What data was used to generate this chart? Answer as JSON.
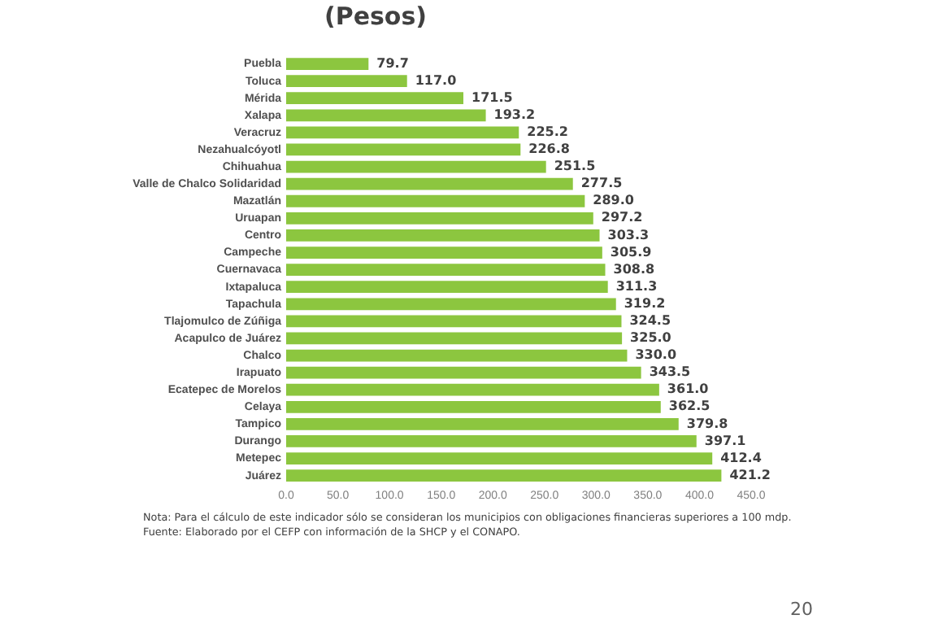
{
  "chart_data": {
    "type": "bar",
    "orientation": "horizontal",
    "title": "(Pesos)",
    "categories": [
      "Puebla",
      "Toluca",
      "Mérida",
      "Xalapa",
      "Veracruz",
      "Nezahualcóyotl",
      "Chihuahua",
      "Valle de Chalco Solidaridad",
      "Mazatlán",
      "Uruapan",
      "Centro",
      "Campeche",
      "Cuernavaca",
      "Ixtapaluca",
      "Tapachula",
      "Tlajomulco de Zúñiga",
      "Acapulco de Juárez",
      "Chalco",
      "Irapuato",
      "Ecatepec de Morelos",
      "Celaya",
      "Tampico",
      "Durango",
      "Metepec",
      "Juárez"
    ],
    "values": [
      79.7,
      117.0,
      171.5,
      193.2,
      225.2,
      226.8,
      251.5,
      277.5,
      289.0,
      297.2,
      303.3,
      305.9,
      308.8,
      311.3,
      319.2,
      324.5,
      325.0,
      330.0,
      343.5,
      361.0,
      362.5,
      379.8,
      397.1,
      412.4,
      421.2
    ],
    "value_labels": [
      "79.7",
      "117.0",
      "171.5",
      "193.2",
      "225.2",
      "226.8",
      "251.5",
      "277.5",
      "289.0",
      "297.2",
      "303.3",
      "305.9",
      "308.8",
      "311.3",
      "319.2",
      "324.5",
      "325.0",
      "330.0",
      "343.5",
      "361.0",
      "362.5",
      "379.8",
      "397.1",
      "412.4",
      "421.2"
    ],
    "color": "#8cc63f",
    "xlim": [
      0,
      450
    ],
    "xticks": [
      {
        "value": 0,
        "label": "0.0"
      },
      {
        "value": 50,
        "label": "50.0"
      },
      {
        "value": 100,
        "label": "100.0"
      },
      {
        "value": 150,
        "label": "150.0"
      },
      {
        "value": 200,
        "label": "200.0"
      },
      {
        "value": 250,
        "label": "250.0"
      },
      {
        "value": 300,
        "label": "300.0"
      },
      {
        "value": 350,
        "label": "350.0"
      },
      {
        "value": 400,
        "label": "400.0"
      },
      {
        "value": 450,
        "label": "450.0"
      }
    ],
    "grid": false,
    "legend": false,
    "annotations": [
      "Nota: Para el cálculo de este indicador sólo se consideran los municipios con obligaciones financieras superiores a 100 mdp.",
      "Fuente:  Elaborado por el CEFP con información de la SHCP y el CONAPO.",
      "20"
    ]
  }
}
